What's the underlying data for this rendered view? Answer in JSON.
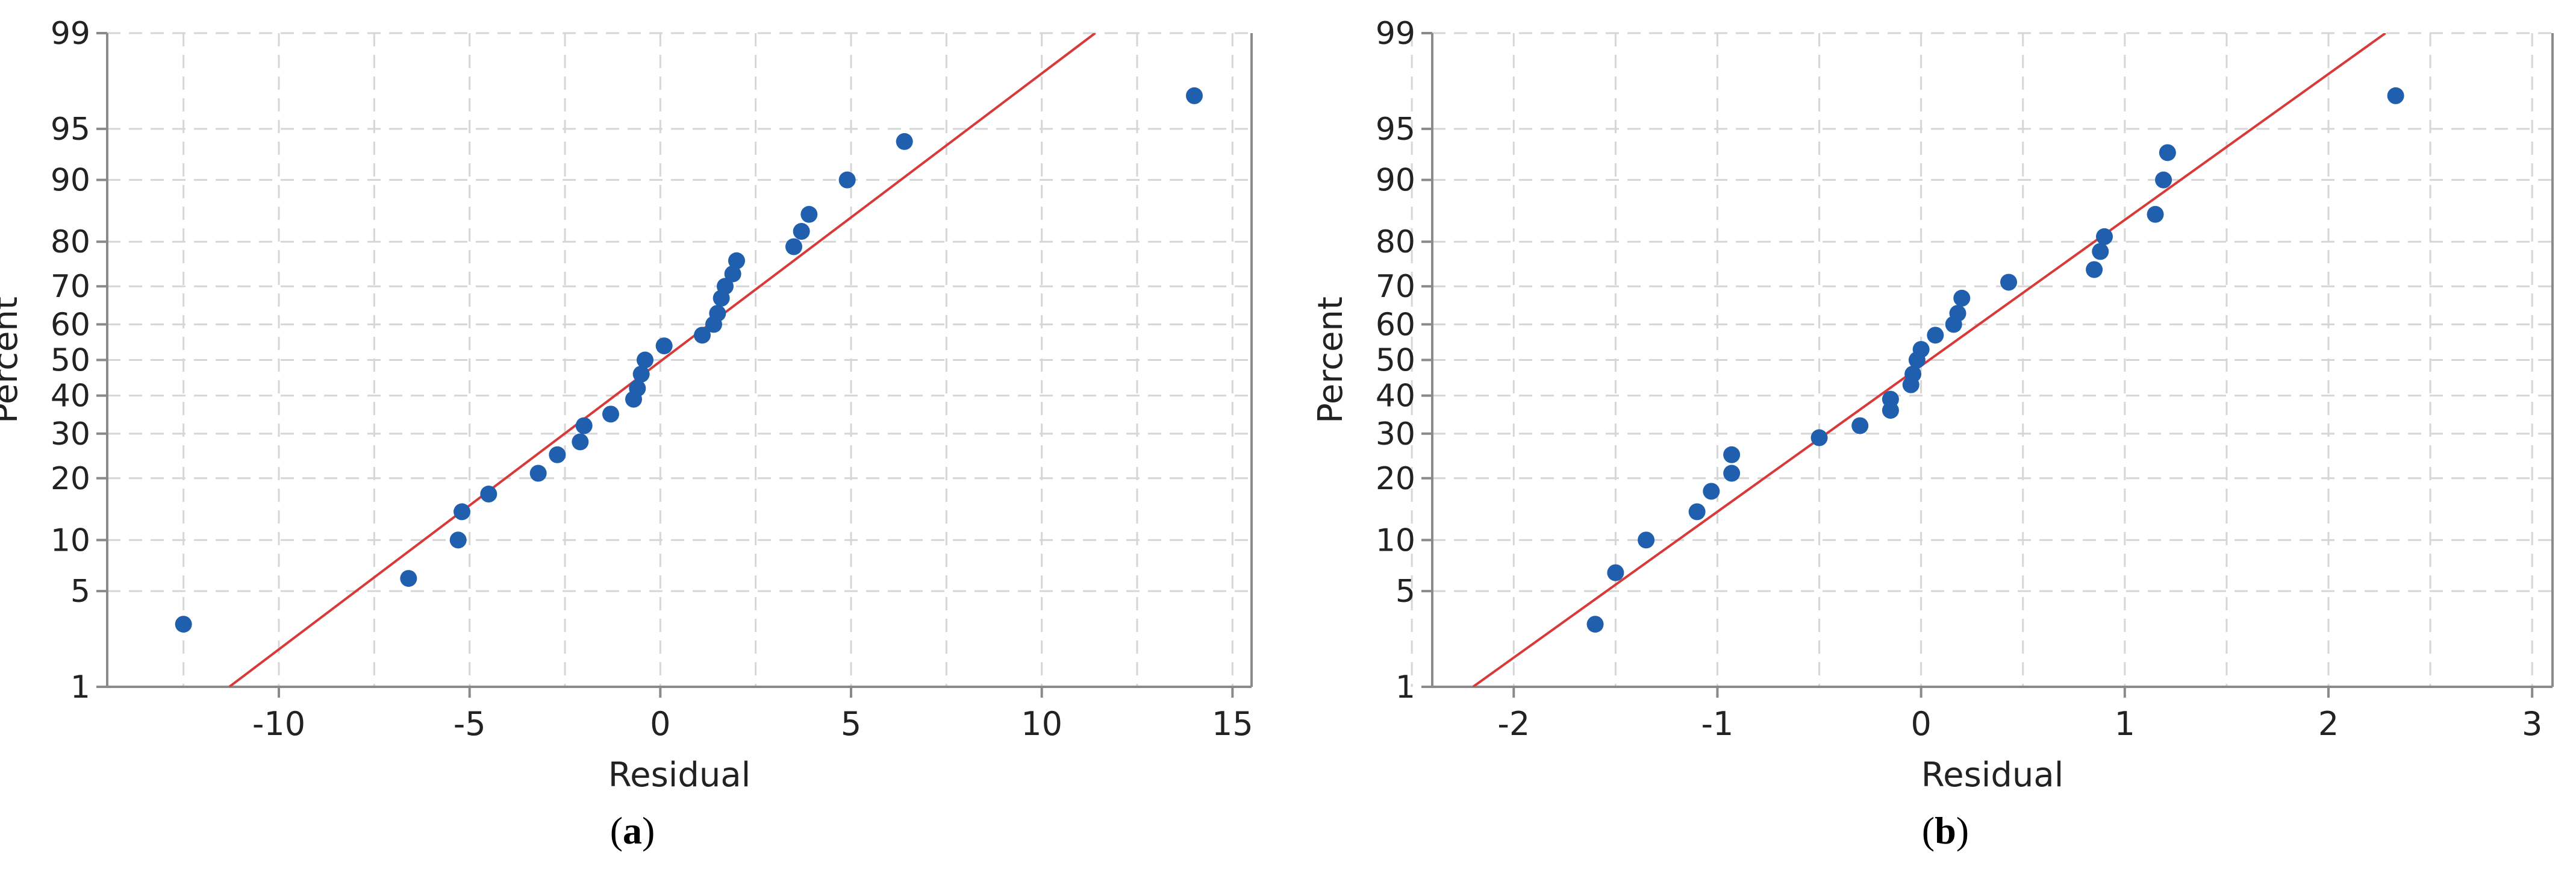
{
  "colors": {
    "points": "#1f5fae",
    "fit_line": "#d83a3a",
    "grid": "#d6d6d6",
    "axis": "#8a8a8a"
  },
  "chart_data": [
    {
      "type": "scatter",
      "subtitle": "a",
      "xlabel": "Residual",
      "ylabel": "Percent",
      "y_scale": "normal-probability",
      "xlim": [
        -14.5,
        15.5
      ],
      "xticks": [
        -10,
        -5,
        0,
        5,
        10,
        15
      ],
      "ylim": [
        1,
        99
      ],
      "yticks": [
        1,
        5,
        10,
        20,
        30,
        40,
        50,
        60,
        70,
        80,
        90,
        95,
        99
      ],
      "grid": true,
      "fit_line": {
        "x": [
          -11.3,
          11.4
        ],
        "y": [
          1,
          99
        ]
      },
      "points": {
        "x": [
          -12.5,
          -6.6,
          -5.3,
          -5.2,
          -4.5,
          -3.2,
          -2.7,
          -2.1,
          -2.0,
          -1.3,
          -0.7,
          -0.6,
          -0.5,
          -0.4,
          0.1,
          1.1,
          1.4,
          1.5,
          1.6,
          1.7,
          1.9,
          2.0,
          3.5,
          3.7,
          3.9,
          4.9,
          6.4,
          14.0
        ],
        "y": [
          3,
          6,
          10,
          14,
          17,
          21,
          25,
          28,
          32,
          35,
          39,
          42,
          46,
          50,
          54,
          57,
          60,
          63,
          67,
          70,
          73,
          76,
          79,
          82,
          85,
          90,
          94,
          97
        ]
      }
    },
    {
      "type": "scatter",
      "subtitle": "b",
      "xlabel": "Residual",
      "ylabel": "Percent",
      "y_scale": "normal-probability",
      "xlim": [
        -2.4,
        3.1
      ],
      "xticks": [
        -2,
        -1,
        0,
        1,
        2,
        3
      ],
      "ylim": [
        1,
        99
      ],
      "yticks": [
        1,
        5,
        10,
        20,
        30,
        40,
        50,
        60,
        70,
        80,
        90,
        95,
        99
      ],
      "grid": true,
      "fit_line": {
        "x": [
          -2.2,
          2.28
        ],
        "y": [
          1,
          99
        ]
      },
      "points": {
        "x": [
          -1.6,
          -1.5,
          -1.35,
          -1.1,
          -1.03,
          -0.93,
          -0.93,
          -0.5,
          -0.3,
          -0.15,
          -0.15,
          -0.05,
          -0.04,
          -0.02,
          0.0,
          0.07,
          0.16,
          0.18,
          0.2,
          0.43,
          0.85,
          0.88,
          0.9,
          1.15,
          1.19,
          1.21,
          2.33
        ],
        "y": [
          3,
          6.5,
          10,
          14,
          17.5,
          21,
          25,
          29,
          32,
          36,
          39,
          43,
          46,
          50,
          53,
          57,
          60,
          63,
          67,
          71,
          74,
          78,
          81,
          85,
          90,
          93,
          97
        ]
      }
    }
  ]
}
